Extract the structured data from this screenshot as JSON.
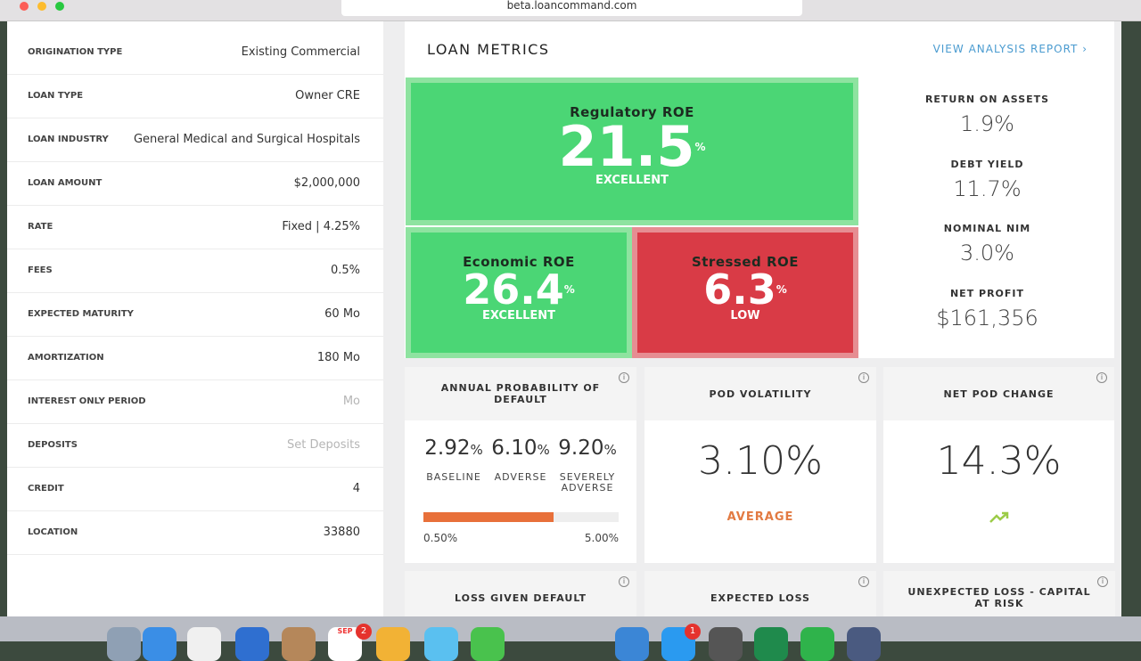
{
  "browser": {
    "url": "beta.loancommand.com"
  },
  "loan_fields": [
    {
      "label": "ORIGINATION TYPE",
      "value": "Existing Commercial"
    },
    {
      "label": "LOAN TYPE",
      "value": "Owner CRE"
    },
    {
      "label": "LOAN INDUSTRY",
      "value": "General Medical and Surgical Hospitals"
    },
    {
      "label": "LOAN AMOUNT",
      "value": "$2,000,000"
    },
    {
      "label": "RATE",
      "value": "Fixed | 4.25%"
    },
    {
      "label": "FEES",
      "value": "0.5%"
    },
    {
      "label": "EXPECTED MATURITY",
      "value": "60 Mo"
    },
    {
      "label": "AMORTIZATION",
      "value": "180 Mo"
    },
    {
      "label": "INTEREST ONLY PERIOD",
      "placeholder": "Mo"
    },
    {
      "label": "DEPOSITS",
      "placeholder": "Set Deposits"
    },
    {
      "label": "CREDIT",
      "value": "4"
    },
    {
      "label": "LOCATION",
      "value": "33880"
    }
  ],
  "metrics": {
    "title": "LOAN METRICS",
    "link": "VIEW ANALYSIS REPORT",
    "roe": {
      "regulatory": {
        "title": "Regulatory ROE",
        "value": "21.5",
        "unit": "%",
        "rating": "EXCELLENT"
      },
      "economic": {
        "title": "Economic ROE",
        "value": "26.4",
        "unit": "%",
        "rating": "EXCELLENT"
      },
      "stressed": {
        "title": "Stressed ROE",
        "value": "6.3",
        "unit": "%",
        "rating": "LOW"
      }
    },
    "side": [
      {
        "label": "RETURN ON ASSETS",
        "value": "1.9%"
      },
      {
        "label": "DEBT YIELD",
        "value": "11.7%"
      },
      {
        "label": "NOMINAL NIM",
        "value": "3.0%"
      },
      {
        "label": "NET PROFIT",
        "value": "$161,356"
      }
    ],
    "pod": {
      "title": "ANNUAL PROBABILITY OF DEFAULT",
      "items": [
        {
          "value": "2.92",
          "unit": "%",
          "label": "BASELINE"
        },
        {
          "value": "6.10",
          "unit": "%",
          "label": "ADVERSE"
        },
        {
          "value": "9.20",
          "unit": "%",
          "label": "SEVERELY ADVERSE"
        }
      ],
      "scale_min": "0.50%",
      "scale_max": "5.00%"
    },
    "volatility": {
      "title": "POD VOLATILITY",
      "value": "3.10%",
      "rating": "AVERAGE"
    },
    "net_change": {
      "title": "NET POD CHANGE",
      "value": "14.3%"
    },
    "bottom_cards": [
      "LOSS GIVEN DEFAULT",
      "EXPECTED LOSS",
      "UNEXPECTED LOSS - CAPITAL AT RISK"
    ]
  },
  "dock": {
    "calendar_month": "SEP",
    "badges": [
      "2",
      "1"
    ]
  }
}
